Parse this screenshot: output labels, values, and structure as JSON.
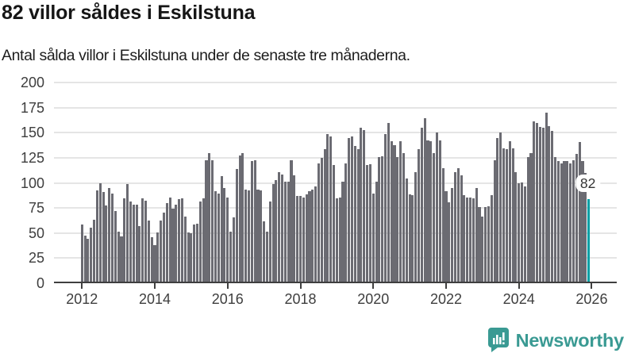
{
  "header": {
    "title": "82 villor såldes i Eskilstuna",
    "subtitle": "Antal sålda villor i Eskilstuna under de senaste tre månaderna."
  },
  "chart_data": {
    "type": "bar",
    "title": "82 villor såldes i Eskilstuna",
    "subtitle": "Antal sålda villor i Eskilstuna under de senaste tre månaderna.",
    "x_start": "2012-01",
    "x_interval": "month",
    "x_start_year": 2012,
    "xticks": [
      2012,
      2014,
      2016,
      2018,
      2020,
      2022,
      2024,
      2026
    ],
    "yticks": [
      0,
      25,
      50,
      75,
      100,
      125,
      150,
      175,
      200
    ],
    "ylim": [
      0,
      200
    ],
    "grid": true,
    "legend": false,
    "series": [
      {
        "name": "Sålda villor",
        "values": [
          57,
          46,
          43,
          54,
          62,
          91,
          98,
          89,
          76,
          93,
          88,
          70,
          50,
          45,
          83,
          97,
          80,
          77,
          77,
          55,
          83,
          81,
          61,
          44,
          36,
          49,
          61,
          69,
          78,
          84,
          73,
          77,
          82,
          83,
          65,
          49,
          48,
          57,
          58,
          80,
          83,
          121,
          128,
          121,
          90,
          88,
          105,
          93,
          84,
          50,
          64,
          112,
          126,
          128,
          92,
          91,
          120,
          121,
          92,
          91,
          60,
          50,
          80,
          97,
          101,
          109,
          107,
          100,
          100,
          121,
          106,
          85,
          85,
          84,
          87,
          90,
          92,
          95,
          118,
          123,
          132,
          147,
          145,
          116,
          83,
          84,
          100,
          118,
          143,
          145,
          135,
          132,
          153,
          151,
          116,
          117,
          88,
          100,
          124,
          125,
          147,
          158,
          140,
          136,
          124,
          140,
          128,
          103,
          87,
          86,
          109,
          132,
          153,
          163,
          141,
          140,
          128,
          149,
          141,
          113,
          90,
          79,
          93,
          109,
          113,
          106,
          86,
          84,
          84,
          83,
          93,
          74,
          65,
          74,
          75,
          86,
          121,
          143,
          149,
          133,
          132,
          140,
          133,
          109,
          98,
          99,
          95,
          124,
          128,
          160,
          158,
          154,
          153,
          168,
          155,
          150,
          124,
          120,
          118,
          120,
          120,
          118,
          121,
          127,
          139,
          120,
          108,
          82
        ]
      }
    ],
    "highlight": {
      "index": 167,
      "value": 82,
      "label": "82"
    },
    "colors": {
      "bar": "#6b6b72",
      "highlight": "#00a0a5",
      "grid": "#e5e5e5",
      "axis": "#3f3f3f",
      "tick_label": "#3e3e3e",
      "value_label_text": "#333333"
    }
  },
  "footer": {
    "brand": "Newsworthy",
    "brand_color": "#3a9a93",
    "brand_icon": "bar-chart-speech-bubble-icon"
  }
}
